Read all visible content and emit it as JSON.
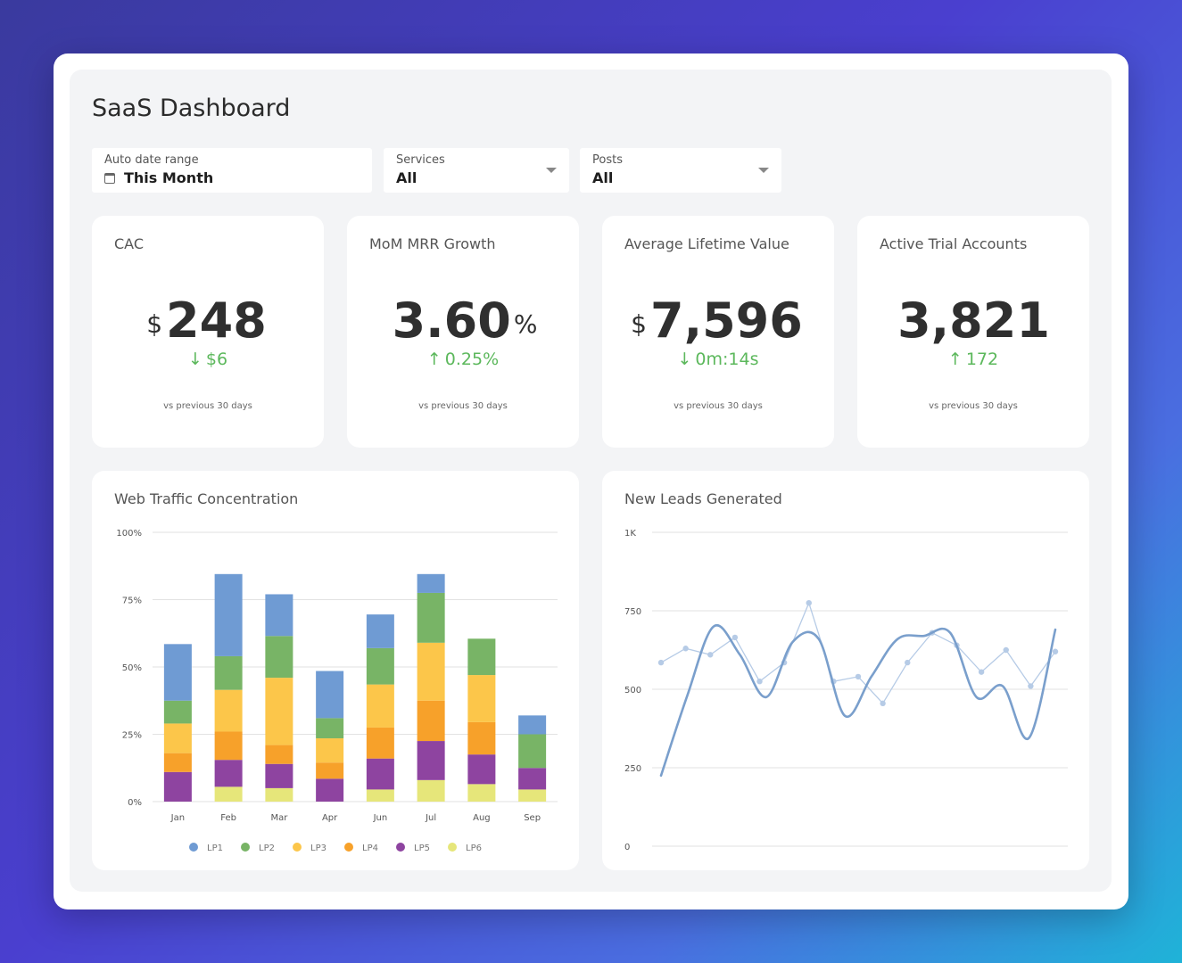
{
  "page": {
    "title": "SaaS Dashboard"
  },
  "filters": [
    {
      "label": "Auto date range",
      "value": "This Month",
      "icon": "calendar-icon"
    },
    {
      "label": "Services",
      "value": "All",
      "icon": "chevron-down-icon"
    },
    {
      "label": "Posts",
      "value": "All",
      "icon": "chevron-down-icon"
    }
  ],
  "kpis": [
    {
      "title": "CAC",
      "prefix": "$",
      "value": "248",
      "suffix": "",
      "delta_arrow": "↓",
      "delta": "$6",
      "sub": "vs previous 30 days"
    },
    {
      "title": "MoM MRR Growth",
      "prefix": "",
      "value": "3.60",
      "suffix": "%",
      "delta_arrow": "↑",
      "delta": "0.25%",
      "sub": "vs previous 30 days"
    },
    {
      "title": "Average Lifetime Value",
      "prefix": "$",
      "value": "7,596",
      "suffix": "",
      "delta_arrow": "↓",
      "delta": "0m:14s",
      "sub": "vs previous 30 days"
    },
    {
      "title": "Active Trial Accounts",
      "prefix": "",
      "value": "3,821",
      "suffix": "",
      "delta_arrow": "↑",
      "delta": "172",
      "sub": "vs previous 30 days"
    }
  ],
  "colors": {
    "positive": "#5cb85c",
    "line": "#7a9fcc",
    "line_light": "#b6cbe6"
  },
  "chart_data": [
    {
      "type": "bar",
      "stacked": true,
      "title": "Web Traffic Concentration",
      "categories": [
        "Jan",
        "Feb",
        "Mar",
        "Apr",
        "Jun",
        "Jul",
        "Aug",
        "Sep"
      ],
      "y_ticks": [
        "0%",
        "25%",
        "50%",
        "75%",
        "100%"
      ],
      "ylim": [
        0,
        100
      ],
      "legend_position": "bottom",
      "series": [
        {
          "name": "LP6",
          "color": "#e6e67a",
          "values": [
            0,
            5.5,
            5,
            0,
            4.5,
            8,
            6.5,
            4.5
          ]
        },
        {
          "name": "LP5",
          "color": "#8e44a0",
          "values": [
            11,
            10,
            9,
            8.5,
            11.5,
            14.5,
            11,
            8
          ]
        },
        {
          "name": "LP4",
          "color": "#f7a12a",
          "values": [
            7,
            10.5,
            7,
            6,
            11.5,
            15,
            12,
            0
          ]
        },
        {
          "name": "LP3",
          "color": "#fcc64a",
          "values": [
            11,
            15.5,
            25,
            9,
            16,
            21.5,
            17.5,
            0
          ]
        },
        {
          "name": "LP2",
          "color": "#78b466",
          "values": [
            8.5,
            12.5,
            15.5,
            7.5,
            13.5,
            18.5,
            13.5,
            12.5
          ]
        },
        {
          "name": "LP1",
          "color": "#6f9bd3",
          "values": [
            21,
            30.5,
            15.5,
            17.5,
            12.5,
            7,
            0,
            7
          ]
        }
      ],
      "legend": [
        "LP1",
        "LP2",
        "LP3",
        "LP4",
        "LP5",
        "LP6"
      ]
    },
    {
      "type": "line",
      "title": "New Leads Generated",
      "y_ticks": [
        "0",
        "250",
        "500",
        "750",
        "1K"
      ],
      "ylim": [
        0,
        1000
      ],
      "grid": true,
      "series": [
        {
          "name": "",
          "style": "smooth",
          "color": "#7a9fcc",
          "values": [
            225,
            480,
            700,
            610,
            475,
            650,
            660,
            415,
            540,
            660,
            670,
            680,
            475,
            510,
            345,
            690
          ]
        },
        {
          "name": "",
          "style": "points",
          "color": "#b6cbe6",
          "values": [
            585,
            630,
            610,
            665,
            525,
            585,
            775,
            525,
            540,
            455,
            585,
            680,
            640,
            555,
            625,
            510,
            620
          ]
        }
      ]
    }
  ]
}
